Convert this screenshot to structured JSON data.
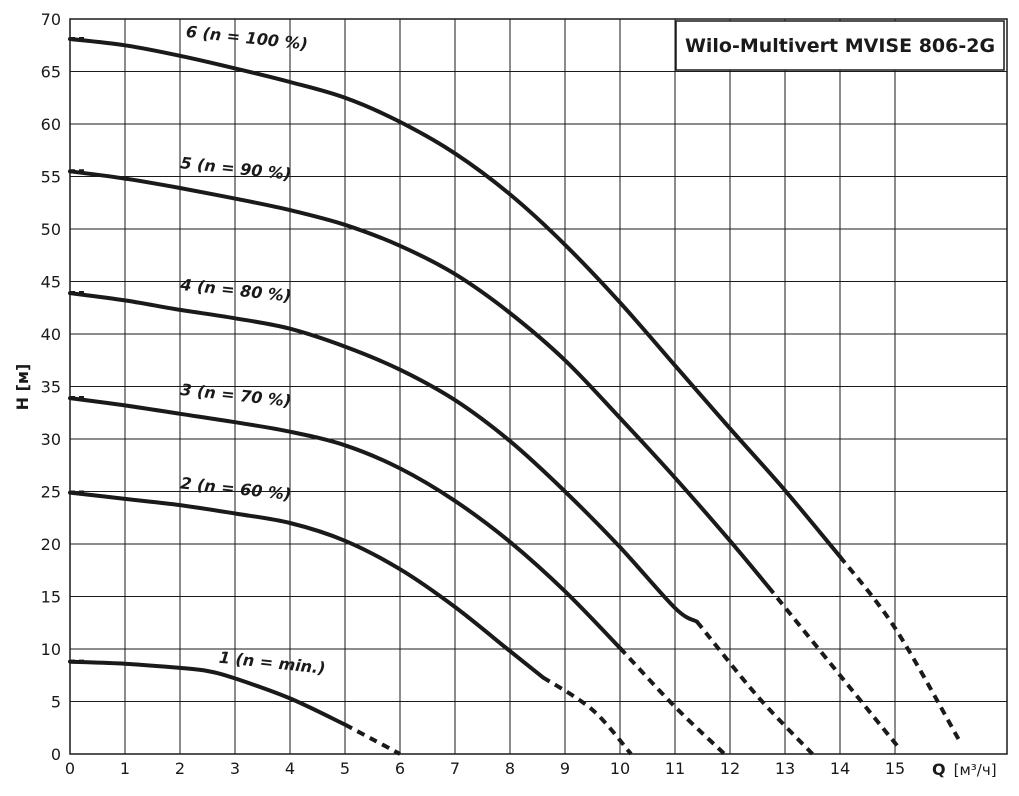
{
  "chart_data": {
    "type": "line",
    "title": "Wilo-Multivert MVISE 806-2G",
    "xlabel": "Q",
    "xunit": "[м³/ч]",
    "ylabel": "H [м]",
    "xlim": [
      0,
      17
    ],
    "ylim": [
      0,
      70
    ],
    "xticks": [
      0,
      1,
      2,
      3,
      4,
      5,
      6,
      7,
      8,
      9,
      10,
      11,
      12,
      13,
      14,
      15
    ],
    "yticks": [
      0,
      5,
      10,
      15,
      20,
      25,
      30,
      35,
      40,
      45,
      50,
      55,
      60,
      65,
      70
    ],
    "grid": true,
    "series": [
      {
        "name": "1 (n = min.)",
        "solid": [
          [
            0,
            8.8
          ],
          [
            1,
            8.6
          ],
          [
            2,
            8.2
          ],
          [
            2.5,
            7.9
          ],
          [
            3,
            7.2
          ],
          [
            4,
            5.3
          ],
          [
            5,
            2.8
          ]
        ],
        "dashed": [
          [
            5,
            2.8
          ],
          [
            5.5,
            1.4
          ],
          [
            6,
            0
          ]
        ]
      },
      {
        "name": "2 (n = 60 %)",
        "solid": [
          [
            0,
            24.9
          ],
          [
            1,
            24.3
          ],
          [
            2,
            23.7
          ],
          [
            3,
            22.9
          ],
          [
            4,
            22.0
          ],
          [
            5,
            20.3
          ],
          [
            6,
            17.6
          ],
          [
            7,
            14.0
          ],
          [
            8,
            9.8
          ],
          [
            8.6,
            7.3
          ]
        ],
        "dashed": [
          [
            8.6,
            7.3
          ],
          [
            9.5,
            4.2
          ],
          [
            10.2,
            0
          ]
        ]
      },
      {
        "name": "3 (n = 70 %)",
        "solid": [
          [
            0,
            33.9
          ],
          [
            1,
            33.2
          ],
          [
            2,
            32.4
          ],
          [
            3,
            31.6
          ],
          [
            4,
            30.7
          ],
          [
            5,
            29.4
          ],
          [
            6,
            27.2
          ],
          [
            7,
            24.1
          ],
          [
            8,
            20.2
          ],
          [
            9,
            15.5
          ],
          [
            10,
            10.1
          ]
        ],
        "dashed": [
          [
            10,
            10.1
          ],
          [
            11,
            4.5
          ],
          [
            11.9,
            0
          ]
        ]
      },
      {
        "name": "4 (n = 80 %)",
        "solid": [
          [
            0,
            43.9
          ],
          [
            1,
            43.2
          ],
          [
            2,
            42.3
          ],
          [
            3,
            41.5
          ],
          [
            4,
            40.5
          ],
          [
            5,
            38.8
          ],
          [
            6,
            36.6
          ],
          [
            7,
            33.7
          ],
          [
            8,
            29.8
          ],
          [
            9,
            25.0
          ],
          [
            10,
            19.7
          ],
          [
            11,
            13.9
          ],
          [
            11.4,
            12.6
          ]
        ],
        "dashed": [
          [
            11.4,
            12.6
          ],
          [
            12.5,
            5.5
          ],
          [
            13.5,
            0
          ]
        ]
      },
      {
        "name": "5 (n = 90 %)",
        "solid": [
          [
            0,
            55.5
          ],
          [
            1,
            54.8
          ],
          [
            2,
            53.9
          ],
          [
            3,
            52.9
          ],
          [
            4,
            51.8
          ],
          [
            5,
            50.4
          ],
          [
            6,
            48.4
          ],
          [
            7,
            45.7
          ],
          [
            8,
            42.0
          ],
          [
            9,
            37.5
          ],
          [
            10,
            32.0
          ],
          [
            11,
            26.3
          ],
          [
            12,
            20.3
          ],
          [
            12.7,
            15.9
          ]
        ],
        "dashed": [
          [
            12.7,
            15.9
          ],
          [
            14,
            7.5
          ],
          [
            15.1,
            0.4
          ]
        ]
      },
      {
        "name": "6 (n = 100 %)",
        "solid": [
          [
            0,
            68.1
          ],
          [
            1,
            67.5
          ],
          [
            2,
            66.5
          ],
          [
            3,
            65.3
          ],
          [
            4,
            64.0
          ],
          [
            5,
            62.5
          ],
          [
            6,
            60.2
          ],
          [
            7,
            57.2
          ],
          [
            8,
            53.3
          ],
          [
            9,
            48.5
          ],
          [
            10,
            43.0
          ],
          [
            11,
            37.0
          ],
          [
            12,
            31.0
          ],
          [
            13,
            25.1
          ],
          [
            14,
            18.8
          ]
        ],
        "dashed": [
          [
            14,
            18.8
          ],
          [
            15,
            12.0
          ],
          [
            16.2,
            1.0
          ]
        ]
      }
    ],
    "curve_labels": [
      {
        "text": "1 (n = min.)",
        "x": 2.7,
        "y": 8.7
      },
      {
        "text": "2 (n = 60 %)",
        "x": 2.0,
        "y": 25.3
      },
      {
        "text": "3 (n = 70 %)",
        "x": 2.0,
        "y": 34.2
      },
      {
        "text": "4 (n = 80 %)",
        "x": 2.0,
        "y": 44.2
      },
      {
        "text": "5 (n = 90 %)",
        "x": 2.0,
        "y": 55.8
      },
      {
        "text": "6 (n = 100 %)",
        "x": 2.1,
        "y": 68.3
      }
    ]
  }
}
